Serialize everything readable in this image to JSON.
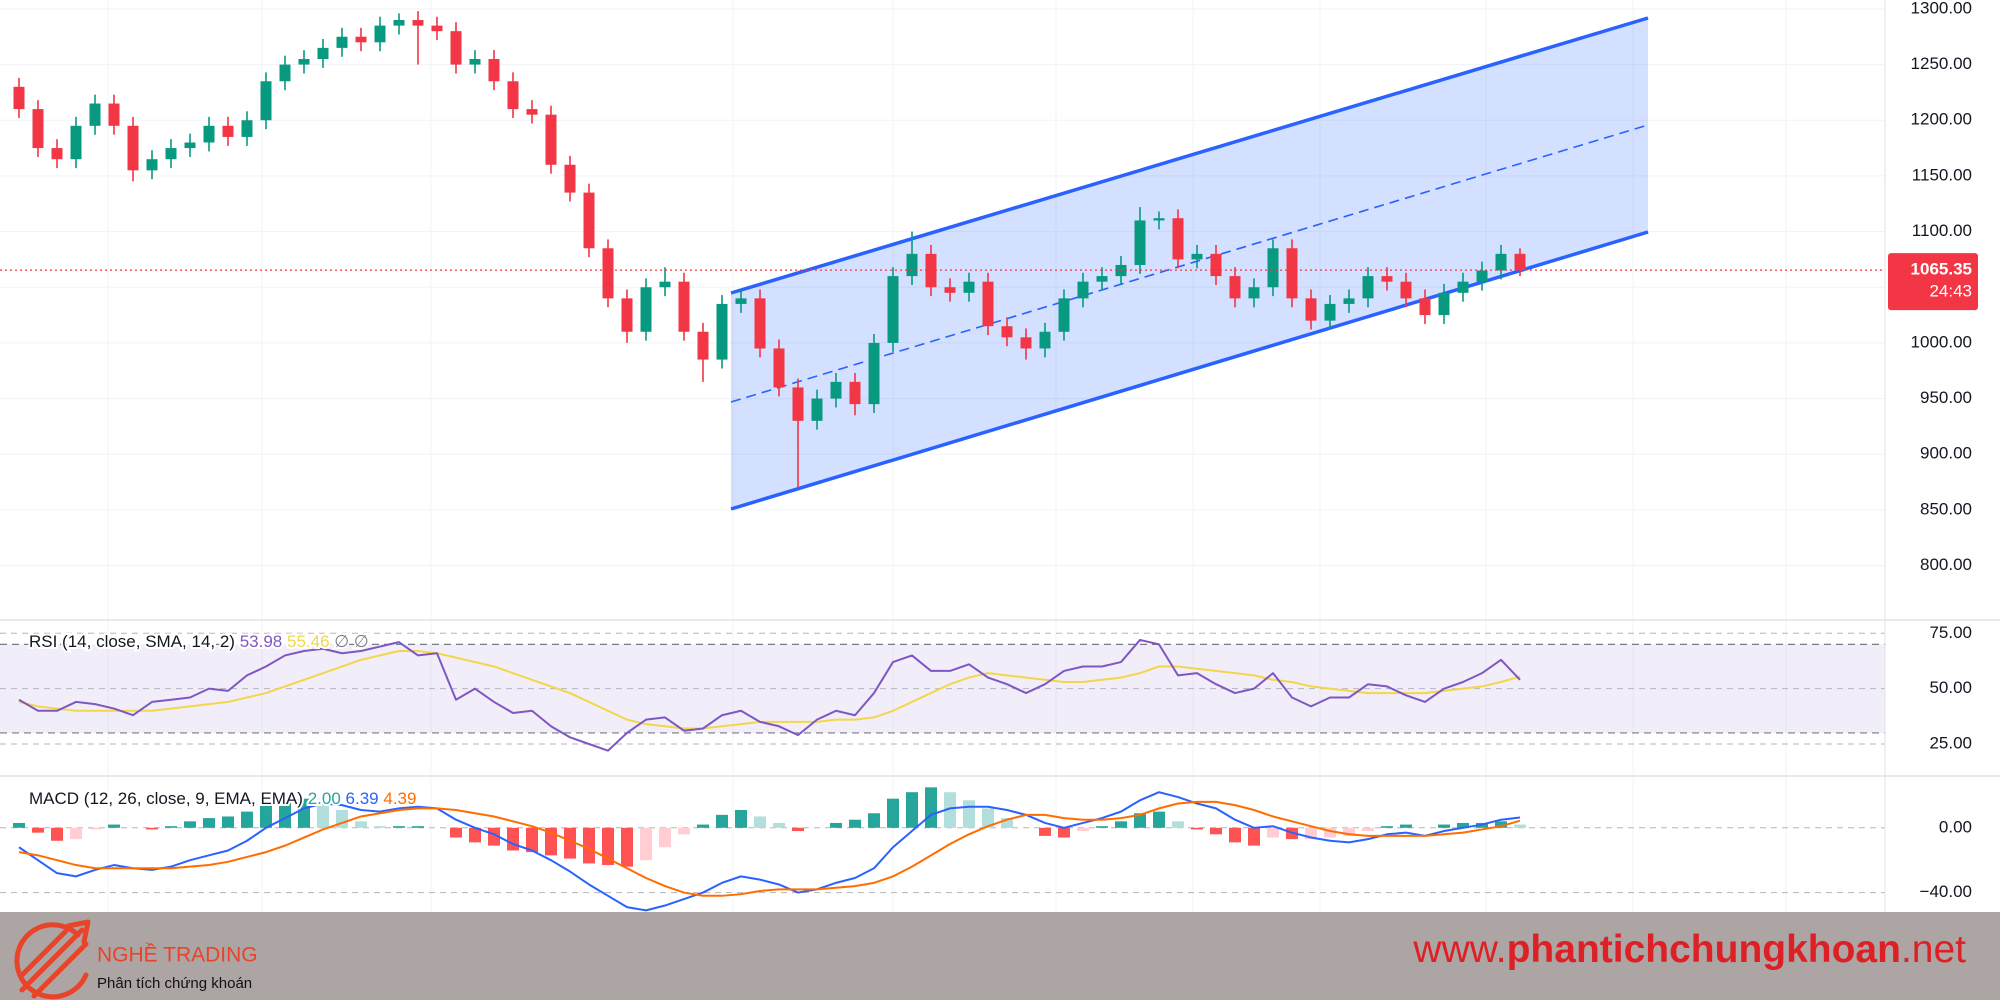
{
  "chart_data": [
    {
      "type": "candlestick",
      "open": [
        1230,
        1210,
        1175,
        1165,
        1195,
        1215,
        1195,
        1155,
        1165,
        1175,
        1180,
        1195,
        1185,
        1200,
        1235,
        1250,
        1255,
        1265,
        1275,
        1270,
        1285,
        1290,
        1285,
        1280,
        1250,
        1255,
        1235,
        1210,
        1205,
        1160,
        1135,
        1085,
        1040,
        1010,
        1050,
        1055,
        1010,
        985,
        1035,
        1040,
        995,
        960,
        930,
        950,
        965,
        945,
        1000,
        1060,
        1080,
        1050,
        1045,
        1055,
        1015,
        1005,
        995,
        1010,
        1040,
        1055,
        1060,
        1070,
        1110,
        1112,
        1075,
        1080,
        1060,
        1040,
        1050,
        1085,
        1040,
        1020,
        1035,
        1040,
        1060,
        1055,
        1040,
        1025,
        1045,
        1055,
        1065,
        1080
      ],
      "high": [
        1238,
        1218,
        1183,
        1203,
        1223,
        1223,
        1203,
        1173,
        1183,
        1188,
        1203,
        1203,
        1208,
        1243,
        1258,
        1263,
        1273,
        1283,
        1283,
        1293,
        1296,
        1298,
        1293,
        1288,
        1263,
        1263,
        1243,
        1218,
        1213,
        1168,
        1143,
        1093,
        1048,
        1058,
        1068,
        1063,
        1018,
        1043,
        1048,
        1048,
        1003,
        968,
        958,
        973,
        973,
        1008,
        1068,
        1100,
        1088,
        1058,
        1063,
        1063,
        1023,
        1013,
        1018,
        1048,
        1063,
        1068,
        1078,
        1122,
        1118,
        1120,
        1088,
        1088,
        1068,
        1058,
        1093,
        1093,
        1048,
        1043,
        1048,
        1068,
        1068,
        1063,
        1048,
        1053,
        1063,
        1073,
        1088,
        1085
      ],
      "low": [
        1202,
        1167,
        1157,
        1157,
        1187,
        1187,
        1145,
        1147,
        1157,
        1167,
        1172,
        1177,
        1177,
        1192,
        1227,
        1242,
        1247,
        1257,
        1262,
        1262,
        1277,
        1250,
        1272,
        1242,
        1242,
        1227,
        1202,
        1197,
        1152,
        1127,
        1077,
        1032,
        1000,
        1002,
        1042,
        1002,
        965,
        977,
        1027,
        987,
        952,
        870,
        922,
        942,
        935,
        937,
        992,
        1052,
        1042,
        1037,
        1037,
        1007,
        997,
        985,
        987,
        1002,
        1032,
        1047,
        1052,
        1062,
        1102,
        1067,
        1067,
        1052,
        1032,
        1032,
        1042,
        1032,
        1012,
        1012,
        1027,
        1032,
        1047,
        1032,
        1017,
        1017,
        1037,
        1047,
        1057,
        1060
      ],
      "close": [
        1210,
        1175,
        1165,
        1195,
        1215,
        1195,
        1155,
        1165,
        1175,
        1180,
        1195,
        1185,
        1200,
        1235,
        1250,
        1255,
        1265,
        1275,
        1270,
        1285,
        1290,
        1285,
        1280,
        1250,
        1255,
        1235,
        1210,
        1205,
        1160,
        1135,
        1085,
        1040,
        1010,
        1050,
        1055,
        1010,
        985,
        1035,
        1040,
        995,
        960,
        930,
        950,
        965,
        945,
        1000,
        1060,
        1080,
        1050,
        1045,
        1055,
        1015,
        1005,
        995,
        1010,
        1040,
        1055,
        1060,
        1070,
        1110,
        1112,
        1075,
        1080,
        1060,
        1040,
        1050,
        1085,
        1040,
        1020,
        1035,
        1040,
        1060,
        1055,
        1040,
        1025,
        1045,
        1055,
        1065,
        1080,
        1065.35
      ],
      "up_color": "#089981",
      "down_color": "#f23645",
      "ylim": [
        752,
        1308
      ],
      "yticks": [
        {
          "value": 800,
          "label": "800.00"
        },
        {
          "value": 850,
          "label": "850.00"
        },
        {
          "value": 900,
          "label": "900.00"
        },
        {
          "value": 950,
          "label": "950.00"
        },
        {
          "value": 1000,
          "label": "1000.00"
        },
        {
          "value": 1050,
          "label": "1050.00"
        },
        {
          "value": 1100,
          "label": "1100.00"
        },
        {
          "value": 1150,
          "label": "1150.00"
        },
        {
          "value": 1200,
          "label": "1200.00"
        },
        {
          "value": 1250,
          "label": "1250.00"
        },
        {
          "value": 1300,
          "label": "1300.00"
        }
      ],
      "grid": true,
      "last_price": 1065.35,
      "countdown": "24:43"
    },
    {
      "type": "line",
      "legend": {
        "title": "RSI (14, close, SMA, 14, 2)",
        "values": [
          "53.98",
          "55.46",
          "∅",
          "∅"
        ]
      },
      "series": [
        {
          "color": "#7e57c2",
          "values": [
            45,
            40,
            40,
            44,
            43,
            41,
            38,
            44,
            45,
            46,
            50,
            49,
            56,
            60,
            65,
            67,
            68,
            66,
            67,
            69,
            71,
            65,
            66,
            45,
            50,
            44,
            39,
            40,
            33,
            28,
            25,
            22,
            30,
            36,
            37,
            31,
            32,
            38,
            40,
            35,
            33,
            29,
            36,
            40,
            38,
            48,
            62,
            65,
            58,
            58,
            61,
            55,
            52,
            48,
            52,
            58,
            60,
            60,
            62,
            72,
            70,
            56,
            57,
            52,
            48,
            50,
            57,
            46,
            42,
            46,
            46,
            52,
            51,
            47,
            44,
            50,
            53,
            57,
            63,
            53.98
          ]
        },
        {
          "color": "#f2d64b",
          "values": [
            44,
            42,
            41,
            40,
            40,
            40,
            40,
            40,
            41,
            42,
            43,
            44,
            46,
            48,
            51,
            54,
            57,
            60,
            63,
            65,
            67,
            67,
            66,
            64,
            62,
            60,
            57,
            54,
            51,
            48,
            44,
            40,
            36,
            34,
            33,
            32,
            32,
            33,
            34,
            35,
            35,
            35,
            35,
            36,
            36,
            37,
            40,
            44,
            48,
            52,
            55,
            57,
            56,
            55,
            54,
            53,
            53,
            54,
            55,
            57,
            60,
            60,
            59,
            58,
            57,
            56,
            54,
            53,
            51,
            50,
            49,
            48,
            48,
            48,
            48,
            49,
            50,
            51,
            53,
            55.46
          ]
        }
      ],
      "band": [
        30,
        70
      ],
      "band_color": "#7e57c2",
      "ylim": [
        11,
        81
      ],
      "yticks": [
        {
          "value": 75,
          "label": "75.00"
        },
        {
          "value": 50,
          "label": "50.00"
        },
        {
          "value": 25,
          "label": "25.00"
        }
      ]
    },
    {
      "type": "macd",
      "legend": {
        "title": "MACD (12, 26, close, 9, EMA, EMA)",
        "values": [
          "2.00",
          "6.39",
          "4.39"
        ]
      },
      "histogram": {
        "values": [
          3,
          -3,
          -8,
          -7,
          -1,
          2,
          0,
          -1,
          1,
          4,
          6,
          7,
          10,
          15,
          17,
          18,
          16,
          11,
          4,
          1,
          1,
          1,
          0,
          -6,
          -9,
          -11,
          -14,
          -15,
          -17,
          -19,
          -22,
          -23,
          -24,
          -20,
          -12,
          -4,
          2,
          8,
          11,
          7,
          3,
          -2,
          0,
          3,
          5,
          9,
          18,
          22,
          25,
          22,
          17,
          12,
          6,
          0,
          -5,
          -6,
          -2,
          1,
          4,
          9,
          10,
          4,
          -1,
          -4,
          -9,
          -11,
          -6,
          -7,
          -7,
          -6,
          -5,
          -2,
          1,
          2,
          0,
          2,
          3,
          3,
          4,
          2
        ],
        "colors": [
          "#26a69a",
          "#b2dfdb",
          "#ffcdd2",
          "#ff5252"
        ]
      },
      "series": [
        {
          "color": "#2962ff",
          "values": [
            -12,
            -20,
            -28,
            -30,
            -26,
            -23,
            -25,
            -26,
            -24,
            -20,
            -17,
            -14,
            -8,
            0,
            6,
            12,
            15,
            14,
            11,
            10,
            12,
            13,
            12,
            5,
            0,
            -4,
            -10,
            -14,
            -20,
            -27,
            -35,
            -42,
            -49,
            -51,
            -48,
            -44,
            -40,
            -34,
            -30,
            -32,
            -35,
            -40,
            -38,
            -34,
            -31,
            -25,
            -12,
            -2,
            8,
            12,
            13,
            13,
            11,
            8,
            3,
            0,
            3,
            6,
            10,
            17,
            22,
            19,
            15,
            12,
            5,
            0,
            1,
            -3,
            -6,
            -8,
            -9,
            -7,
            -4,
            -3,
            -5,
            -2,
            0,
            2,
            5,
            6.39
          ]
        },
        {
          "color": "#ff6d00",
          "values": [
            -15,
            -17,
            -20,
            -23,
            -25,
            -25,
            -25,
            -25,
            -25,
            -24,
            -23,
            -21,
            -18,
            -15,
            -11,
            -6,
            -1,
            3,
            7,
            9,
            11,
            12,
            12,
            11,
            9,
            7,
            4,
            1,
            -3,
            -8,
            -13,
            -19,
            -25,
            -31,
            -36,
            -40,
            -42,
            -42,
            -41,
            -39,
            -38,
            -38,
            -38,
            -37,
            -36,
            -34,
            -30,
            -24,
            -17,
            -10,
            -4,
            1,
            5,
            8,
            8,
            6,
            5,
            5,
            6,
            8,
            12,
            15,
            16,
            16,
            14,
            11,
            7,
            4,
            1,
            -2,
            -4,
            -5,
            -5,
            -5,
            -5,
            -4,
            -3,
            -1,
            1,
            4.39
          ]
        }
      ],
      "ylim": [
        -52,
        32
      ],
      "yticks": [
        {
          "value": 0,
          "label": "0.00"
        },
        {
          "value": -40,
          "label": "−40.00"
        }
      ]
    }
  ],
  "footer": {
    "brand": "NGHỀ TRADING",
    "tagline": "Phân tích chứng khoán",
    "url": [
      "www.",
      "phantichchungkhoan",
      ".net"
    ]
  }
}
